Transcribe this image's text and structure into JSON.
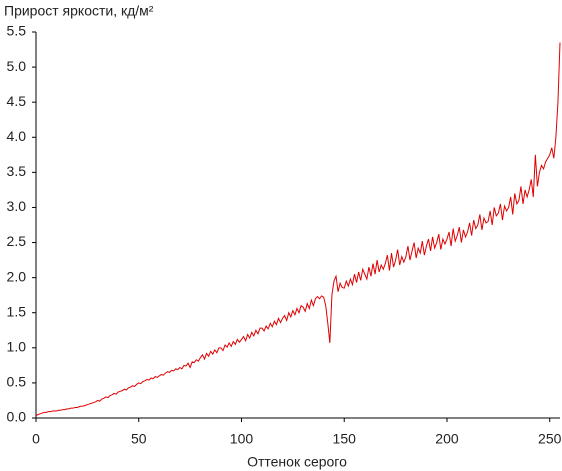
{
  "chart_data": {
    "type": "line",
    "title": "Прирост яркости, кд/м²",
    "x_label": "Оттенок серого",
    "x": [
      0,
      1,
      2,
      3,
      4,
      5,
      6,
      7,
      8,
      9,
      10,
      11,
      12,
      13,
      14,
      15,
      16,
      17,
      18,
      19,
      20,
      21,
      22,
      23,
      24,
      25,
      26,
      27,
      28,
      29,
      30,
      31,
      32,
      33,
      34,
      35,
      36,
      37,
      38,
      39,
      40,
      41,
      42,
      43,
      44,
      45,
      46,
      47,
      48,
      49,
      50,
      51,
      52,
      53,
      54,
      55,
      56,
      57,
      58,
      59,
      60,
      61,
      62,
      63,
      64,
      65,
      66,
      67,
      68,
      69,
      70,
      71,
      72,
      73,
      74,
      75,
      76,
      77,
      78,
      79,
      80,
      81,
      82,
      83,
      84,
      85,
      86,
      87,
      88,
      89,
      90,
      91,
      92,
      93,
      94,
      95,
      96,
      97,
      98,
      99,
      100,
      101,
      102,
      103,
      104,
      105,
      106,
      107,
      108,
      109,
      110,
      111,
      112,
      113,
      114,
      115,
      116,
      117,
      118,
      119,
      120,
      121,
      122,
      123,
      124,
      125,
      126,
      127,
      128,
      129,
      130,
      131,
      132,
      133,
      134,
      135,
      136,
      137,
      138,
      139,
      140,
      141,
      142,
      143,
      144,
      145,
      146,
      147,
      148,
      149,
      150,
      151,
      152,
      153,
      154,
      155,
      156,
      157,
      158,
      159,
      160,
      161,
      162,
      163,
      164,
      165,
      166,
      167,
      168,
      169,
      170,
      171,
      172,
      173,
      174,
      175,
      176,
      177,
      178,
      179,
      180,
      181,
      182,
      183,
      184,
      185,
      186,
      187,
      188,
      189,
      190,
      191,
      192,
      193,
      194,
      195,
      196,
      197,
      198,
      199,
      200,
      201,
      202,
      203,
      204,
      205,
      206,
      207,
      208,
      209,
      210,
      211,
      212,
      213,
      214,
      215,
      216,
      217,
      218,
      219,
      220,
      221,
      222,
      223,
      224,
      225,
      226,
      227,
      228,
      229,
      230,
      231,
      232,
      233,
      234,
      235,
      236,
      237,
      238,
      239,
      240,
      241,
      242,
      243,
      244,
      245,
      246,
      247,
      248,
      249,
      250,
      251,
      252,
      253,
      254,
      255
    ],
    "series": [
      {
        "name": "Прирост яркости",
        "color": "#e00000",
        "values": [
          0.03,
          0.05,
          0.06,
          0.07,
          0.08,
          0.08,
          0.09,
          0.09,
          0.1,
          0.1,
          0.1,
          0.11,
          0.11,
          0.12,
          0.12,
          0.13,
          0.13,
          0.14,
          0.14,
          0.15,
          0.15,
          0.16,
          0.17,
          0.17,
          0.18,
          0.19,
          0.2,
          0.21,
          0.22,
          0.23,
          0.25,
          0.24,
          0.27,
          0.28,
          0.3,
          0.29,
          0.32,
          0.33,
          0.35,
          0.34,
          0.37,
          0.38,
          0.39,
          0.41,
          0.4,
          0.43,
          0.44,
          0.46,
          0.45,
          0.48,
          0.5,
          0.49,
          0.52,
          0.53,
          0.55,
          0.54,
          0.57,
          0.56,
          0.59,
          0.58,
          0.6,
          0.62,
          0.61,
          0.64,
          0.66,
          0.65,
          0.68,
          0.67,
          0.7,
          0.69,
          0.72,
          0.7,
          0.75,
          0.74,
          0.78,
          0.72,
          0.8,
          0.79,
          0.83,
          0.81,
          0.86,
          0.9,
          0.84,
          0.92,
          0.88,
          0.95,
          0.91,
          0.97,
          0.93,
          1.0,
          1.0,
          0.96,
          1.04,
          1.01,
          1.07,
          1.02,
          1.09,
          1.05,
          1.12,
          1.08,
          1.12,
          1.16,
          1.1,
          1.19,
          1.14,
          1.22,
          1.17,
          1.25,
          1.2,
          1.28,
          1.28,
          1.24,
          1.31,
          1.27,
          1.35,
          1.3,
          1.38,
          1.33,
          1.42,
          1.36,
          1.42,
          1.46,
          1.39,
          1.5,
          1.44,
          1.53,
          1.47,
          1.56,
          1.5,
          1.6,
          1.58,
          1.52,
          1.63,
          1.56,
          1.68,
          1.6,
          1.7,
          1.73,
          1.7,
          1.74,
          1.72,
          1.6,
          1.35,
          1.07,
          1.75,
          1.95,
          2.02,
          1.8,
          1.92,
          1.86,
          1.85,
          1.95,
          1.88,
          1.98,
          1.9,
          2.05,
          1.93,
          2.08,
          1.96,
          2.12,
          2.05,
          1.98,
          2.15,
          2.02,
          2.2,
          2.05,
          2.25,
          2.08,
          2.18,
          2.12,
          2.2,
          2.32,
          2.1,
          2.35,
          2.15,
          2.25,
          2.4,
          2.18,
          2.3,
          2.22,
          2.3,
          2.45,
          2.25,
          2.38,
          2.5,
          2.28,
          2.42,
          2.35,
          2.52,
          2.32,
          2.45,
          2.55,
          2.38,
          2.58,
          2.42,
          2.5,
          2.62,
          2.4,
          2.55,
          2.48,
          2.55,
          2.65,
          2.45,
          2.7,
          2.52,
          2.6,
          2.72,
          2.5,
          2.68,
          2.58,
          2.65,
          2.78,
          2.6,
          2.82,
          2.7,
          2.75,
          2.9,
          2.68,
          2.85,
          2.78,
          2.8,
          2.95,
          2.75,
          3.0,
          2.88,
          2.92,
          3.05,
          2.82,
          3.02,
          2.95,
          3.0,
          3.15,
          2.9,
          3.2,
          3.05,
          3.1,
          3.3,
          3.05,
          3.25,
          3.15,
          3.25,
          3.4,
          3.15,
          3.75,
          3.3,
          3.5,
          3.6,
          3.55,
          3.65,
          3.7,
          3.75,
          3.85,
          3.7,
          4.0,
          4.5,
          5.35
        ]
      }
    ],
    "xlim": [
      0,
      255
    ],
    "xticks": [
      0,
      50,
      100,
      150,
      200,
      250
    ],
    "ylim": [
      0,
      5.5
    ],
    "yticks": [
      {
        "value": 0,
        "label": "0.0"
      },
      0.5,
      {
        "value": 1,
        "label": "1.0"
      },
      1.5,
      {
        "value": 2,
        "label": "2.0"
      },
      2.5,
      {
        "value": 3,
        "label": "3.0"
      },
      3.5,
      {
        "value": 4,
        "label": "4.0"
      },
      4.5,
      {
        "value": 5,
        "label": "5.0"
      },
      5.5
    ],
    "grid": false
  }
}
